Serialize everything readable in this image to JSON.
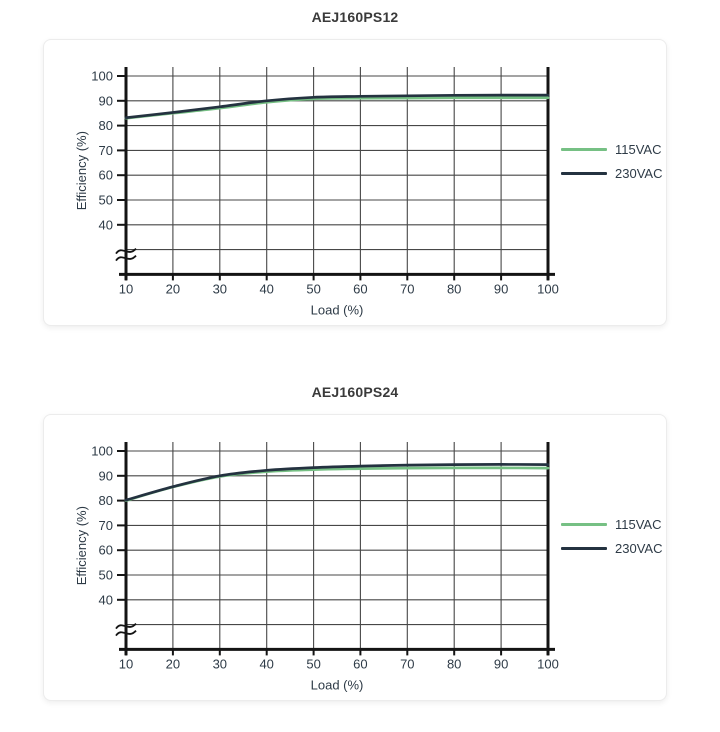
{
  "page_background": "#ffffff",
  "colors": {
    "grid": "#474747",
    "axis": "#141414",
    "tick_text": "#2e3b47",
    "title_text": "#3a3a3a",
    "card_border": "#ececec",
    "series_115vac": "#76c084",
    "series_230vac": "#243240"
  },
  "chart_data": [
    {
      "type": "line",
      "title": "AEJ160PS12",
      "xlabel": "Load (%)",
      "ylabel": "Efficiency (%)",
      "grid": true,
      "legend_position": "right",
      "y_axis_break": true,
      "x_ticks": [
        10,
        20,
        30,
        40,
        50,
        60,
        70,
        80,
        90,
        100
      ],
      "y_ticks": [
        40,
        50,
        60,
        70,
        80,
        90,
        100
      ],
      "ylim": [
        40,
        103
      ],
      "x": [
        10,
        20,
        30,
        40,
        50,
        60,
        70,
        80,
        90,
        100
      ],
      "series": [
        {
          "name": "115VAC",
          "color": "#76c084",
          "values": [
            83.0,
            85.0,
            87.0,
            89.4,
            90.8,
            91.0,
            91.1,
            91.2,
            91.2,
            91.2
          ]
        },
        {
          "name": "230VAC",
          "color": "#243240",
          "values": [
            83.2,
            85.3,
            87.6,
            90.0,
            91.4,
            91.8,
            92.0,
            92.2,
            92.3,
            92.3
          ]
        }
      ]
    },
    {
      "type": "line",
      "title": "AEJ160PS24",
      "xlabel": "Load (%)",
      "ylabel": "Efficiency (%)",
      "grid": true,
      "legend_position": "right",
      "y_axis_break": true,
      "x_ticks": [
        10,
        20,
        30,
        40,
        50,
        60,
        70,
        80,
        90,
        100
      ],
      "y_ticks": [
        40,
        50,
        60,
        70,
        80,
        90,
        100
      ],
      "ylim": [
        40,
        103
      ],
      "x": [
        10,
        20,
        30,
        40,
        50,
        60,
        70,
        80,
        90,
        100
      ],
      "series": [
        {
          "name": "115VAC",
          "color": "#76c084",
          "values": [
            80.0,
            85.5,
            89.7,
            91.7,
            92.5,
            92.9,
            93.1,
            93.2,
            93.2,
            93.1
          ]
        },
        {
          "name": "230VAC",
          "color": "#243240",
          "values": [
            80.2,
            85.6,
            90.0,
            92.2,
            93.3,
            93.9,
            94.3,
            94.5,
            94.6,
            94.5
          ]
        }
      ]
    }
  ]
}
